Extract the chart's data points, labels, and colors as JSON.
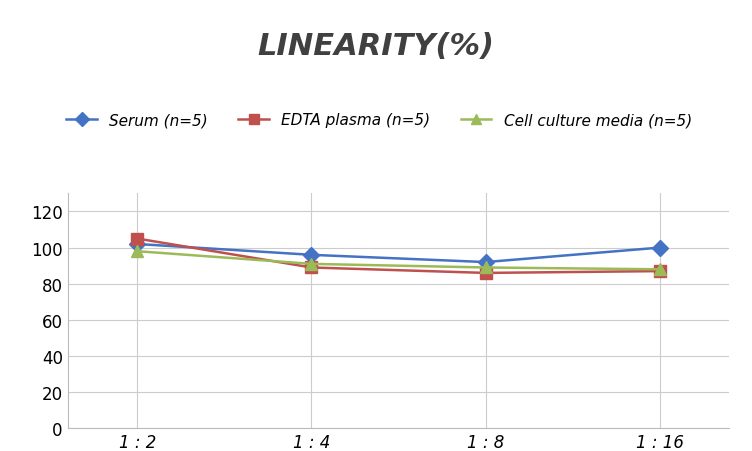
{
  "title": "LINEARITY(%)",
  "x_labels": [
    "1 : 2",
    "1 : 4",
    "1 : 8",
    "1 : 16"
  ],
  "x_positions": [
    0,
    1,
    2,
    3
  ],
  "series": [
    {
      "label": "Serum (n=5)",
      "color": "#4472C4",
      "marker": "D",
      "marker_facecolor": "#4472C4",
      "values": [
        102,
        96,
        92,
        100
      ]
    },
    {
      "label": "EDTA plasma (n=5)",
      "color": "#C0504D",
      "marker": "s",
      "marker_facecolor": "#C0504D",
      "values": [
        105,
        89,
        86,
        87
      ]
    },
    {
      "label": "Cell culture media (n=5)",
      "color": "#9BBB59",
      "marker": "^",
      "marker_facecolor": "#9BBB59",
      "values": [
        98,
        91,
        89,
        88
      ]
    }
  ],
  "ylim": [
    0,
    130
  ],
  "yticks": [
    0,
    20,
    40,
    60,
    80,
    100,
    120
  ],
  "background_color": "#FFFFFF",
  "title_fontsize": 22,
  "legend_fontsize": 11,
  "tick_fontsize": 12,
  "grid_color": "#CCCCCC",
  "line_width": 1.8,
  "marker_size": 8,
  "title_color": "#404040"
}
